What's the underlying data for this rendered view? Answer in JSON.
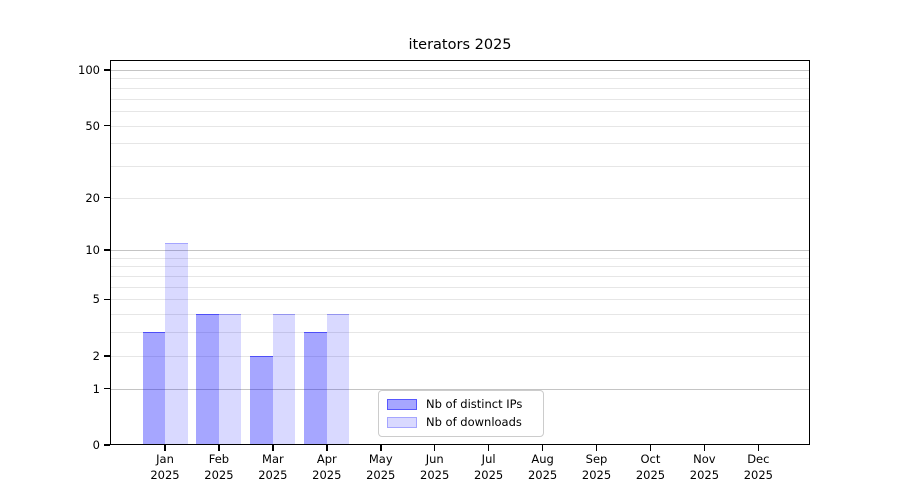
{
  "chart_data": {
    "type": "bar",
    "title": "iterators 2025",
    "categories": [
      "Jan",
      "Feb",
      "Mar",
      "Apr",
      "May",
      "Jun",
      "Jul",
      "Aug",
      "Sep",
      "Oct",
      "Nov",
      "Dec"
    ],
    "x_year_label": "2025",
    "series": [
      {
        "name": "Nb of distinct IPs",
        "fill": "rgba(0,0,255,0.35)",
        "edge": "rgba(0,0,255,0.47)",
        "values": [
          3,
          4,
          2,
          3,
          0,
          0,
          0,
          0,
          0,
          0,
          0,
          0
        ]
      },
      {
        "name": "Nb of downloads",
        "fill": "rgba(0,0,255,0.15)",
        "edge": "rgba(0,0,255,0.24)",
        "values": [
          11,
          4,
          4,
          4,
          0,
          0,
          0,
          0,
          0,
          0,
          0,
          0
        ]
      }
    ],
    "y_axis": {
      "scale": "log10(1+y)",
      "ticks": [
        100,
        50,
        20,
        10,
        5,
        2,
        1,
        0
      ],
      "major_gridlines": [
        1,
        10,
        100
      ],
      "minor_gridlines": [
        2,
        3,
        4,
        5,
        6,
        7,
        8,
        9,
        20,
        30,
        40,
        50,
        60,
        70,
        80,
        90
      ],
      "range": [
        0,
        113
      ]
    },
    "grid": true,
    "legend_position": "lower center",
    "colors": {
      "background": "#ffffff",
      "axis": "#000000",
      "major_grid": "#c4c4c4",
      "minor_grid": "#e6e6e6"
    }
  }
}
